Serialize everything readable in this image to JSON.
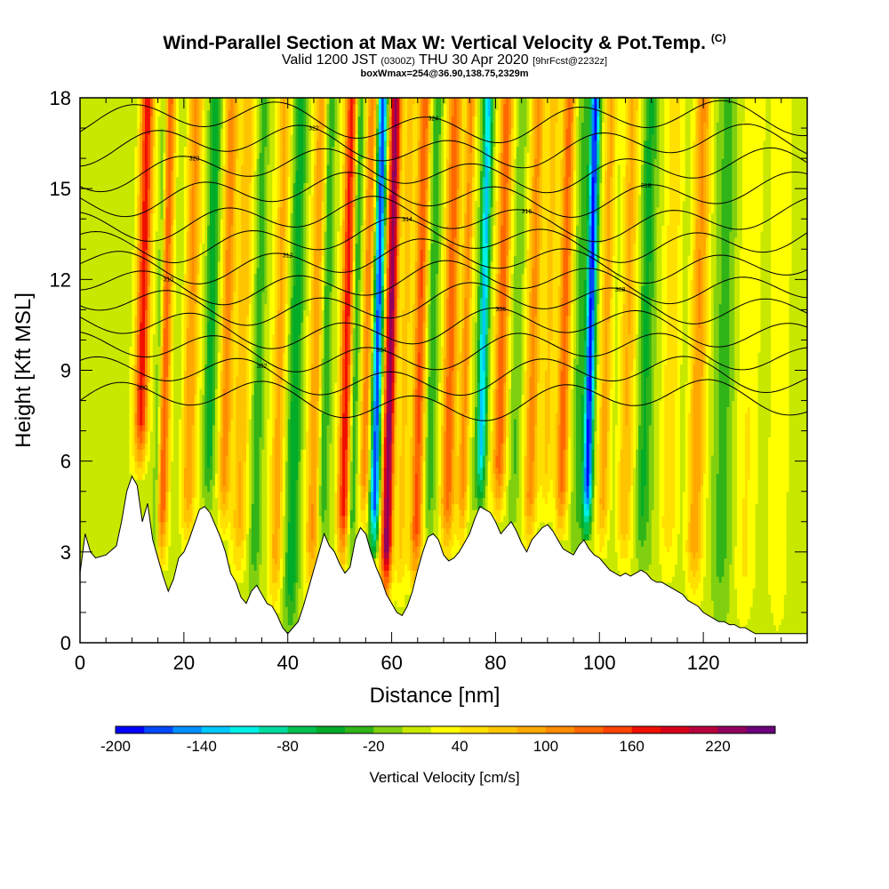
{
  "header": {
    "title": "Wind-Parallel Section at Max W: Vertical Velocity & Pot.Temp.",
    "copyright": "(C)",
    "valid_prefix": "Valid 1200 JST",
    "valid_utc": "(0300Z)",
    "valid_date": "THU 30 Apr 2020",
    "forecast": "[9hrFcst@2232z]",
    "box_info": "boxWmax=254@36.90,138.75,2329m"
  },
  "chart_data": {
    "type": "heatmap",
    "xlabel": "Distance [nm]",
    "ylabel": "Height [Kft MSL]",
    "xlim": [
      0,
      140
    ],
    "ylim": [
      0,
      18
    ],
    "x_ticks": [
      "0",
      "20",
      "40",
      "60",
      "80",
      "100",
      "120"
    ],
    "y_ticks": [
      "0",
      "3",
      "6",
      "9",
      "12",
      "15",
      "18"
    ],
    "colorbar": {
      "title": "Vertical Velocity [cm/s]",
      "tick_labels": [
        "-200",
        "-140",
        "-80",
        "-20",
        "40",
        "100",
        "160",
        "220"
      ],
      "bins": [
        -200,
        -180,
        -160,
        -140,
        -120,
        -100,
        -80,
        -60,
        -40,
        -20,
        0,
        20,
        40,
        60,
        80,
        100,
        120,
        140,
        160,
        180,
        200,
        220,
        240
      ],
      "colors": [
        "#0000ff",
        "#0048ff",
        "#0090ff",
        "#00c8ff",
        "#00f0e8",
        "#00dca0",
        "#00c050",
        "#00ac28",
        "#30b418",
        "#80d010",
        "#c8e800",
        "#ffff00",
        "#ffe000",
        "#ffc400",
        "#ffa800",
        "#ff8c00",
        "#ff6800",
        "#ff4400",
        "#f01000",
        "#d80018",
        "#b8003c",
        "#90005c",
        "#6c007c"
      ]
    },
    "terrain_kft": [
      [
        0,
        2.3
      ],
      [
        1,
        3.6
      ],
      [
        2,
        3.0
      ],
      [
        3,
        2.8
      ],
      [
        5,
        2.9
      ],
      [
        7,
        3.2
      ],
      [
        8,
        4.0
      ],
      [
        9,
        5.0
      ],
      [
        10,
        5.5
      ],
      [
        11,
        5.2
      ],
      [
        12,
        4.0
      ],
      [
        13,
        4.6
      ],
      [
        14,
        3.4
      ],
      [
        15,
        2.8
      ],
      [
        16,
        2.2
      ],
      [
        17,
        1.7
      ],
      [
        18,
        2.1
      ],
      [
        19,
        2.8
      ],
      [
        20,
        3.0
      ],
      [
        21,
        3.4
      ],
      [
        22,
        3.9
      ],
      [
        23,
        4.4
      ],
      [
        24,
        4.5
      ],
      [
        25,
        4.3
      ],
      [
        26,
        3.9
      ],
      [
        27,
        3.5
      ],
      [
        28,
        3.0
      ],
      [
        29,
        2.3
      ],
      [
        30,
        2.0
      ],
      [
        31,
        1.5
      ],
      [
        32,
        1.3
      ],
      [
        33,
        1.7
      ],
      [
        34,
        1.9
      ],
      [
        35,
        1.6
      ],
      [
        36,
        1.3
      ],
      [
        37,
        1.2
      ],
      [
        38,
        0.9
      ],
      [
        39,
        0.5
      ],
      [
        40,
        0.3
      ],
      [
        41,
        0.5
      ],
      [
        42,
        0.7
      ],
      [
        43,
        1.2
      ],
      [
        44,
        1.8
      ],
      [
        45,
        2.4
      ],
      [
        46,
        3.0
      ],
      [
        47,
        3.6
      ],
      [
        48,
        3.2
      ],
      [
        49,
        3.0
      ],
      [
        50,
        2.6
      ],
      [
        51,
        2.3
      ],
      [
        52,
        2.5
      ],
      [
        53,
        3.4
      ],
      [
        54,
        3.8
      ],
      [
        55,
        3.6
      ],
      [
        56,
        3.0
      ],
      [
        57,
        2.5
      ],
      [
        58,
        2.1
      ],
      [
        59,
        1.6
      ],
      [
        60,
        1.3
      ],
      [
        61,
        1.0
      ],
      [
        62,
        0.9
      ],
      [
        63,
        1.2
      ],
      [
        64,
        1.7
      ],
      [
        65,
        2.4
      ],
      [
        66,
        3.0
      ],
      [
        67,
        3.5
      ],
      [
        68,
        3.6
      ],
      [
        69,
        3.4
      ],
      [
        70,
        2.9
      ],
      [
        71,
        2.7
      ],
      [
        72,
        2.8
      ],
      [
        73,
        3.0
      ],
      [
        74,
        3.3
      ],
      [
        75,
        3.6
      ],
      [
        76,
        4.1
      ],
      [
        77,
        4.5
      ],
      [
        78,
        4.4
      ],
      [
        79,
        4.3
      ],
      [
        80,
        4.0
      ],
      [
        81,
        3.6
      ],
      [
        82,
        3.8
      ],
      [
        83,
        4.0
      ],
      [
        84,
        3.7
      ],
      [
        85,
        3.3
      ],
      [
        86,
        3.0
      ],
      [
        87,
        3.4
      ],
      [
        88,
        3.6
      ],
      [
        89,
        3.8
      ],
      [
        90,
        3.9
      ],
      [
        91,
        3.7
      ],
      [
        92,
        3.4
      ],
      [
        93,
        3.1
      ],
      [
        94,
        3.0
      ],
      [
        95,
        2.9
      ],
      [
        96,
        3.2
      ],
      [
        97,
        3.4
      ],
      [
        98,
        3.1
      ],
      [
        99,
        2.9
      ],
      [
        100,
        2.8
      ],
      [
        101,
        2.6
      ],
      [
        102,
        2.4
      ],
      [
        103,
        2.3
      ],
      [
        104,
        2.2
      ],
      [
        105,
        2.3
      ],
      [
        106,
        2.2
      ],
      [
        107,
        2.3
      ],
      [
        108,
        2.4
      ],
      [
        109,
        2.3
      ],
      [
        110,
        2.1
      ],
      [
        111,
        2.0
      ],
      [
        112,
        2.0
      ],
      [
        113,
        1.9
      ],
      [
        114,
        1.8
      ],
      [
        115,
        1.7
      ],
      [
        116,
        1.6
      ],
      [
        117,
        1.4
      ],
      [
        118,
        1.3
      ],
      [
        119,
        1.2
      ],
      [
        120,
        1.0
      ],
      [
        121,
        0.9
      ],
      [
        122,
        0.8
      ],
      [
        123,
        0.7
      ],
      [
        124,
        0.7
      ],
      [
        125,
        0.6
      ],
      [
        126,
        0.6
      ],
      [
        127,
        0.5
      ],
      [
        128,
        0.5
      ],
      [
        129,
        0.4
      ],
      [
        130,
        0.3
      ],
      [
        131,
        0.3
      ],
      [
        132,
        0.3
      ],
      [
        133,
        0.3
      ],
      [
        134,
        0.3
      ],
      [
        135,
        0.3
      ],
      [
        136,
        0.3
      ],
      [
        137,
        0.3
      ],
      [
        138,
        0.3
      ],
      [
        139,
        0.3
      ]
    ],
    "velocity_features": [
      {
        "x": 11.5,
        "z0": 5.5,
        "z1": 18,
        "value": 170,
        "width": 1.3
      },
      {
        "x": 15.5,
        "z0": 2.5,
        "z1": 18,
        "value": 130,
        "width": 1.2
      },
      {
        "x": 14.5,
        "z0": 2.5,
        "z1": 18,
        "value": -70,
        "width": 0.7
      },
      {
        "x": 20.5,
        "z0": 3.0,
        "z1": 18,
        "value": 90,
        "width": 1.4
      },
      {
        "x": 24.5,
        "z0": 4.4,
        "z1": 18,
        "value": -60,
        "width": 1.0
      },
      {
        "x": 27.5,
        "z0": 3.5,
        "z1": 18,
        "value": 100,
        "width": 1.2
      },
      {
        "x": 30.5,
        "z0": 2.0,
        "z1": 18,
        "value": 70,
        "width": 1.5
      },
      {
        "x": 33.5,
        "z0": 1.5,
        "z1": 18,
        "value": -40,
        "width": 1.0
      },
      {
        "x": 37.5,
        "z0": 1.0,
        "z1": 18,
        "value": 80,
        "width": 1.3
      },
      {
        "x": 40.5,
        "z0": 0.3,
        "z1": 18,
        "value": -60,
        "width": 1.3
      },
      {
        "x": 44.5,
        "z0": 1.5,
        "z1": 18,
        "value": 90,
        "width": 1.3
      },
      {
        "x": 46.5,
        "z0": 3.0,
        "z1": 18,
        "value": -50,
        "width": 0.9
      },
      {
        "x": 50.5,
        "z0": 2.5,
        "z1": 18,
        "value": 160,
        "width": 1.2
      },
      {
        "x": 52.0,
        "z0": 2.3,
        "z1": 18,
        "value": -60,
        "width": 0.8
      },
      {
        "x": 54.5,
        "z0": 3.6,
        "z1": 18,
        "value": 110,
        "width": 1.0
      },
      {
        "x": 56.5,
        "z0": 2.8,
        "z1": 18,
        "value": -190,
        "width": 0.9
      },
      {
        "x": 58.8,
        "z0": 1.3,
        "z1": 18,
        "value": 230,
        "width": 1.1
      },
      {
        "x": 61.5,
        "z0": 1.0,
        "z1": 18,
        "value": 60,
        "width": 1.2
      },
      {
        "x": 64.5,
        "z0": 1.7,
        "z1": 18,
        "value": 130,
        "width": 1.2
      },
      {
        "x": 67.0,
        "z0": 3.4,
        "z1": 18,
        "value": -40,
        "width": 1.0
      },
      {
        "x": 70.5,
        "z0": 2.8,
        "z1": 18,
        "value": 120,
        "width": 1.4
      },
      {
        "x": 73.5,
        "z0": 3.0,
        "z1": 18,
        "value": 100,
        "width": 1.0
      },
      {
        "x": 77.0,
        "z0": 4.4,
        "z1": 18,
        "value": -140,
        "width": 0.9
      },
      {
        "x": 80.5,
        "z0": 4.0,
        "z1": 18,
        "value": 130,
        "width": 1.3
      },
      {
        "x": 83.5,
        "z0": 3.8,
        "z1": 18,
        "value": -30,
        "width": 1.0
      },
      {
        "x": 86.5,
        "z0": 3.0,
        "z1": 18,
        "value": 100,
        "width": 1.3
      },
      {
        "x": 89.5,
        "z0": 3.8,
        "z1": 18,
        "value": 60,
        "width": 1.2
      },
      {
        "x": 92.5,
        "z0": 3.4,
        "z1": 18,
        "value": 120,
        "width": 1.2
      },
      {
        "x": 95.5,
        "z0": 2.9,
        "z1": 18,
        "value": -30,
        "width": 1.0
      },
      {
        "x": 97.5,
        "z0": 3.4,
        "z1": 18,
        "value": -200,
        "width": 0.9
      },
      {
        "x": 100.5,
        "z0": 2.8,
        "z1": 18,
        "value": 80,
        "width": 1.2
      },
      {
        "x": 104.5,
        "z0": 2.2,
        "z1": 18,
        "value": 70,
        "width": 1.5
      },
      {
        "x": 108.0,
        "z0": 2.4,
        "z1": 18,
        "value": -50,
        "width": 1.3
      },
      {
        "x": 113.0,
        "z0": 2.0,
        "z1": 18,
        "value": 40,
        "width": 1.8
      },
      {
        "x": 118.0,
        "z0": 1.3,
        "z1": 18,
        "value": 90,
        "width": 1.6
      },
      {
        "x": 123.0,
        "z0": 0.7,
        "z1": 18,
        "value": -30,
        "width": 2.0
      },
      {
        "x": 128.0,
        "z0": 0.5,
        "z1": 18,
        "value": 30,
        "width": 2.2
      },
      {
        "x": 134.0,
        "z0": 0.3,
        "z1": 18,
        "value": 20,
        "width": 2.5
      }
    ],
    "isentropes_kft": [
      8.0,
      8.8,
      9.6,
      10.4,
      11.2,
      11.9,
      12.6,
      13.3,
      14.0,
      14.8,
      15.6,
      16.4,
      17.2
    ],
    "isentrope_labels": [
      "300",
      "302",
      "304",
      "306",
      "308",
      "310",
      "312",
      "314",
      "316",
      "318",
      "320",
      "322",
      "324"
    ]
  }
}
